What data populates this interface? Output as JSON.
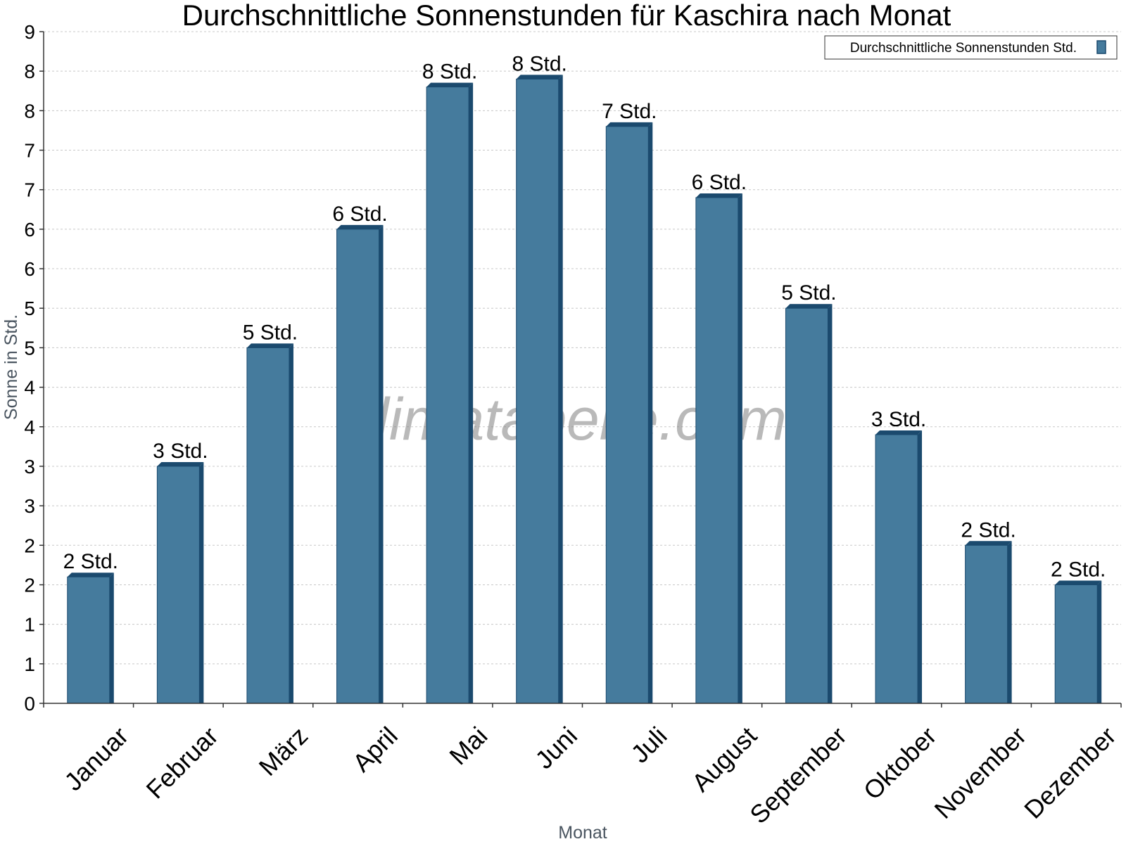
{
  "chart_data": {
    "type": "bar",
    "title": "Durchschnittliche Sonnenstunden für Kaschira nach Monat",
    "xlabel": "Monat",
    "ylabel": "Sonne in Std.",
    "watermark": "klimatabelle.com",
    "categories": [
      "Januar",
      "Februar",
      "März",
      "April",
      "Mai",
      "Juni",
      "Juli",
      "August",
      "September",
      "Oktober",
      "November",
      "Dezember"
    ],
    "series": [
      {
        "name": "Durchschnittliche Sonnenstunden Std.",
        "color": "#457b9d",
        "values": [
          1.6,
          3.0,
          4.5,
          6.0,
          7.8,
          7.9,
          7.3,
          6.4,
          5.0,
          3.4,
          2.0,
          1.5
        ],
        "labels": [
          "2 Std.",
          "3 Std.",
          "5 Std.",
          "6 Std.",
          "8 Std.",
          "8 Std.",
          "7 Std.",
          "6 Std.",
          "5 Std.",
          "3 Std.",
          "2 Std.",
          "2 Std."
        ]
      }
    ],
    "yticks": [
      "0",
      "1",
      "1",
      "2",
      "2",
      "3",
      "3",
      "4",
      "4",
      "5",
      "5",
      "6",
      "6",
      "7",
      "7",
      "8",
      "8",
      "9"
    ],
    "ylim": [
      0,
      8.5
    ],
    "grid": true,
    "legend_position": "top-right",
    "bar_color": "#457b9d",
    "bar_shade_color": "#1b4a6e"
  }
}
